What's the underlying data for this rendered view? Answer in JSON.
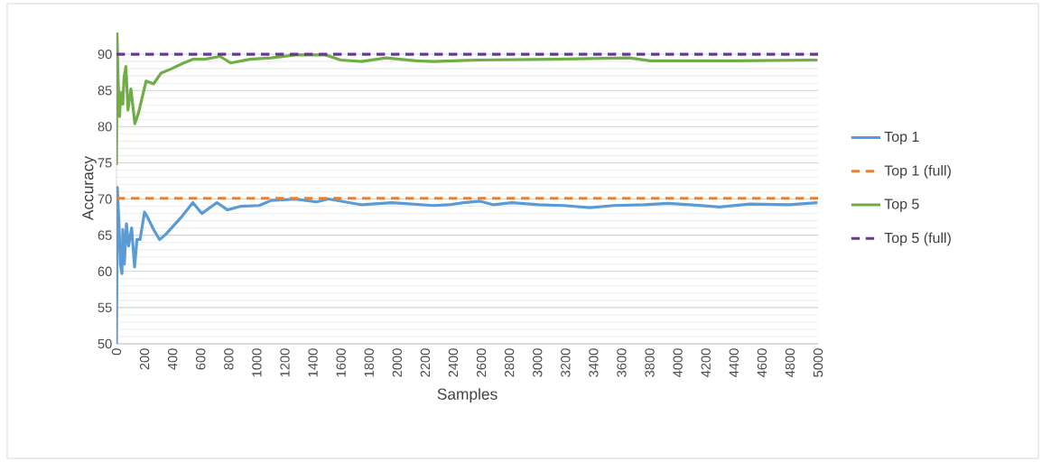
{
  "chart_data": {
    "type": "line",
    "xlabel": "Samples",
    "ylabel": "Accuracy",
    "xlim": [
      0,
      5000
    ],
    "xticks": [
      0,
      200,
      400,
      600,
      800,
      1000,
      1200,
      1400,
      1600,
      1800,
      2000,
      2200,
      2400,
      2600,
      2800,
      3000,
      3200,
      3400,
      3600,
      3800,
      4000,
      4200,
      4400,
      4600,
      4800,
      5000
    ],
    "ylim": [
      50,
      93
    ],
    "yticks": [
      50,
      55,
      60,
      65,
      70,
      75,
      80,
      85,
      90
    ],
    "grid": "y",
    "legend": "right",
    "marker": "none",
    "series": [
      {
        "name": "Top 1",
        "color": "#5b9bd5",
        "line_style": "solid",
        "x": [
          0,
          6,
          17,
          28,
          39,
          45,
          56,
          71,
          86,
          108,
          129,
          146,
          168,
          200,
          221,
          264,
          307,
          350,
          458,
          544,
          608,
          716,
          791,
          888,
          1017,
          1103,
          1275,
          1425,
          1511,
          1748,
          1963,
          2259,
          2366,
          2474,
          2591,
          2688,
          2817,
          3010,
          3182,
          3375,
          3546,
          3761,
          3933,
          4083,
          4298,
          4513,
          4792,
          4996
        ],
        "values": [
          50,
          71.6,
          67.0,
          61.0,
          59.7,
          65.8,
          61.0,
          66.6,
          63.5,
          66.0,
          60.6,
          64.4,
          64.4,
          68.2,
          67.5,
          65.8,
          64.4,
          65.1,
          67.4,
          69.5,
          68.0,
          69.5,
          68.5,
          69.0,
          69.1,
          69.8,
          70.0,
          69.6,
          70.0,
          69.2,
          69.5,
          69.1,
          69.2,
          69.5,
          69.7,
          69.2,
          69.5,
          69.2,
          69.1,
          68.8,
          69.1,
          69.2,
          69.4,
          69.2,
          68.9,
          69.3,
          69.2,
          69.5
        ]
      },
      {
        "name": "Top 1 (full)",
        "color": "#ed7d31",
        "line_style": "dashed",
        "x": [
          0,
          5000
        ],
        "values": [
          70.1,
          70.1
        ]
      },
      {
        "name": "Top 5",
        "color": "#70ad47",
        "line_style": "solid",
        "x": [
          0,
          4,
          11,
          22,
          32,
          45,
          54,
          67,
          82,
          103,
          131,
          157,
          211,
          264,
          318,
          393,
          479,
          544,
          630,
          738,
          813,
          953,
          1103,
          1275,
          1490,
          1597,
          1748,
          1920,
          2135,
          2259,
          2580,
          3118,
          3654,
          3804,
          4405,
          4996
        ],
        "values": [
          74.7,
          93.0,
          86.8,
          81.4,
          84.7,
          83.1,
          86.8,
          88.3,
          82.3,
          85.2,
          80.4,
          81.9,
          86.3,
          85.9,
          87.4,
          88.0,
          88.8,
          89.3,
          89.3,
          89.7,
          88.8,
          89.3,
          89.5,
          89.9,
          89.9,
          89.2,
          89.0,
          89.5,
          89.1,
          89.0,
          89.2,
          89.3,
          89.5,
          89.1,
          89.1,
          89.2
        ]
      },
      {
        "name": "Top 5 (full)",
        "color": "#7030a0",
        "line_style": "dashed",
        "x": [
          0,
          5000
        ],
        "values": [
          90.0,
          90.0
        ]
      }
    ]
  }
}
